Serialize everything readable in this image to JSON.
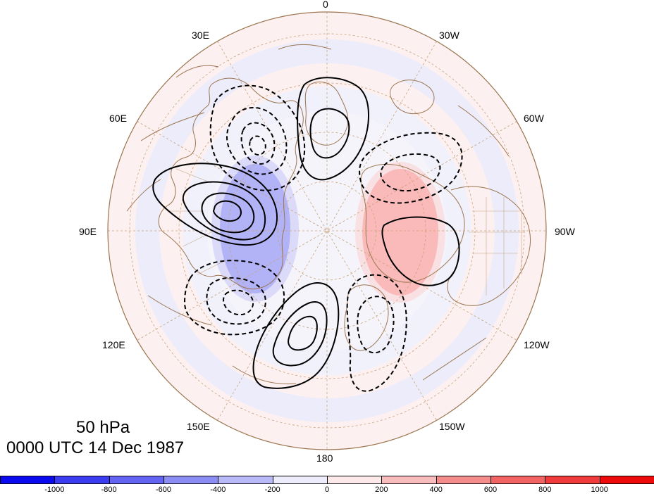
{
  "map": {
    "level_label": "50 hPa",
    "time_label": "0000 UTC 14 Dec 1987",
    "longitude_labels": {
      "lon_0": "0",
      "lon_30w": "30W",
      "lon_60w": "60W",
      "lon_90w": "90W",
      "lon_120w": "120W",
      "lon_150w": "150W",
      "lon_180": "180",
      "lon_150e": "150E",
      "lon_120e": "120E",
      "lon_90e": "90E",
      "lon_60e": "60E",
      "lon_30e": "30E"
    }
  },
  "colorbar": {
    "ticks": [
      "-1000",
      "-800",
      "-600",
      "-400",
      "-200",
      "0",
      "200",
      "400",
      "600",
      "800",
      "1000"
    ],
    "colors": [
      "#0a0aee",
      "#3b3bf0",
      "#6464f2",
      "#8c8cf5",
      "#b9b9f9",
      "#ececfd",
      "#fde9e9",
      "#f9bcbc",
      "#f58c8c",
      "#f26464",
      "#ef3b3b",
      "#ec0a0a"
    ]
  }
}
